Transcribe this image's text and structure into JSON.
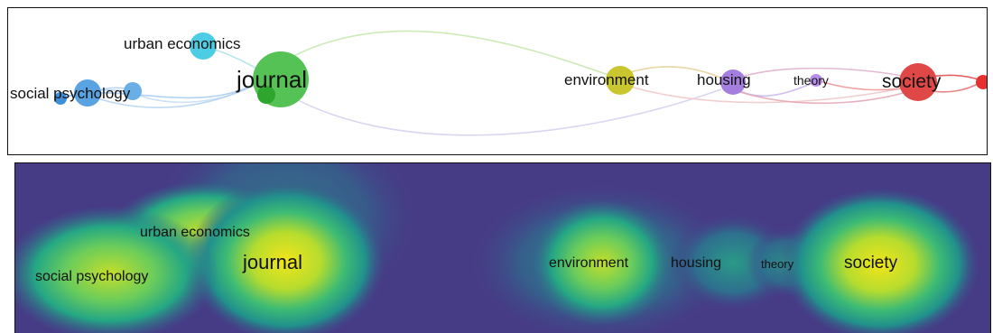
{
  "network_view": {
    "nodes": [
      {
        "id": "social-psychology",
        "label": "social psychology",
        "color": "#4f9fe0"
      },
      {
        "id": "urban-economics",
        "label": "urban economics",
        "color": "#3ec6e0"
      },
      {
        "id": "journal",
        "label": "journal",
        "color": "#4fbe4f"
      },
      {
        "id": "environment",
        "label": "environment",
        "color": "#c9c630"
      },
      {
        "id": "housing",
        "label": "housing",
        "color": "#a57fe0"
      },
      {
        "id": "theory",
        "label": "theory",
        "color": "#a57fe0"
      },
      {
        "id": "society",
        "label": "society",
        "color": "#e04848"
      }
    ],
    "clusters": [
      {
        "name": "blue",
        "color": "#4f9fe0"
      },
      {
        "name": "cyan",
        "color": "#3ec6e0"
      },
      {
        "name": "green",
        "color": "#4fbe4f"
      },
      {
        "name": "yellow",
        "color": "#c9c630"
      },
      {
        "name": "purple",
        "color": "#a57fe0"
      },
      {
        "name": "red",
        "color": "#e04848"
      }
    ]
  },
  "density_view": {
    "background_color": "#463c86",
    "hot_color": "#f2e51a",
    "labels": [
      "social psychology",
      "urban economics",
      "journal",
      "environment",
      "housing",
      "theory",
      "society"
    ]
  }
}
